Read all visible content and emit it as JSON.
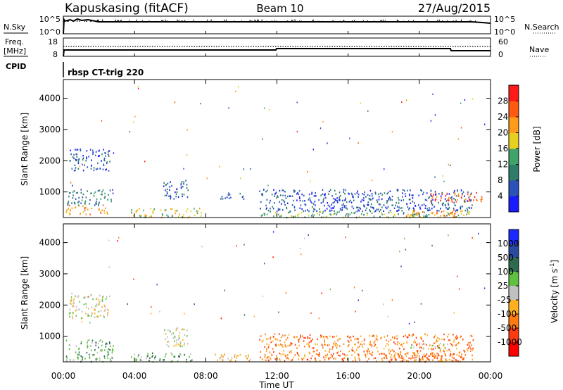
{
  "header": {
    "station": "Kapuskasing (fitACF)",
    "beam": "Beam 10",
    "date": "27/Aug/2015"
  },
  "top_panels": {
    "nsky_label": "N.Sky",
    "nsearch_label": "N.Search",
    "nsky_ticks": [
      "10^5",
      "10^0"
    ],
    "nsearch_ticks": [
      "10^5",
      "10^0"
    ],
    "freq_label_line1": "Freq.",
    "freq_label_line2": "[MHz]",
    "freq_ticks": [
      "18",
      "8"
    ],
    "nave_label": "Nave",
    "nave_ticks": [
      "60",
      "0"
    ],
    "cpid_label": "CPID",
    "cpid_text": "rbsp CT-trig 220"
  },
  "chart_data": [
    {
      "type": "heatmap",
      "panel": "power",
      "ylabel": "Slant Range [km]",
      "colorbar_label": "Power [dB]",
      "xlim": [
        "00:00",
        "24:00"
      ],
      "ylim": [
        180,
        4600
      ],
      "yticks": [
        1000,
        2000,
        3000,
        4000
      ],
      "colorbar_ticks": [
        "4",
        "8",
        "12",
        "16",
        "20",
        "24",
        "28"
      ],
      "colors": [
        "#1a1aff",
        "#2a52b8",
        "#2e7d6a",
        "#3fa36a",
        "#e8d020",
        "#ff9a1a",
        "#ff5a10",
        "#ff1a1a"
      ],
      "scatter_regions": [
        {
          "t0": 0.1,
          "t1": 2.6,
          "r0": 300,
          "r1": 600,
          "level": 5
        },
        {
          "t0": 0.2,
          "t1": 2.8,
          "r0": 600,
          "r1": 1100,
          "level": 2
        },
        {
          "t0": 0.3,
          "t1": 2.6,
          "r0": 1700,
          "r1": 2400,
          "level": 1
        },
        {
          "t0": 5.6,
          "t1": 7.0,
          "r0": 800,
          "r1": 1400,
          "level": 1
        },
        {
          "t0": 3.8,
          "t1": 7.8,
          "r0": 200,
          "r1": 500,
          "level": 4
        },
        {
          "t0": 8.8,
          "t1": 10.2,
          "r0": 800,
          "r1": 1000,
          "level": 1
        },
        {
          "t0": 11.0,
          "t1": 23.0,
          "r0": 400,
          "r1": 1100,
          "level": 1
        },
        {
          "t0": 11.0,
          "t1": 23.0,
          "r0": 200,
          "r1": 400,
          "level": 3
        },
        {
          "t0": 19.0,
          "t1": 22.5,
          "r0": 200,
          "r1": 450,
          "level": 5
        },
        {
          "t0": 20.5,
          "t1": 23.5,
          "r0": 700,
          "r1": 1000,
          "level": 6
        }
      ]
    },
    {
      "type": "heatmap",
      "panel": "velocity",
      "ylabel": "Slant Range [km]",
      "colorbar_label": "Velocity [m s^-1]",
      "xlabel": "Time UT",
      "xlim": [
        "00:00",
        "24:00"
      ],
      "xticks": [
        "00:00",
        "04:00",
        "08:00",
        "12:00",
        "16:00",
        "20:00",
        "00:00"
      ],
      "ylim": [
        180,
        4600
      ],
      "yticks": [
        1000,
        2000,
        3000,
        4000
      ],
      "colorbar_ticks": [
        "1000",
        "500",
        "100",
        "25",
        "-25",
        "-100",
        "-500",
        "-1000"
      ],
      "colors": [
        "#1a2aff",
        "#2a4aa0",
        "#2e6a50",
        "#60c040",
        "#c0c0c0",
        "#ffb020",
        "#ff7a10",
        "#ff3a10",
        "#ff0000"
      ],
      "scatter_regions": [
        {
          "t0": 0.1,
          "t1": 2.8,
          "r0": 200,
          "r1": 900,
          "level": 3
        },
        {
          "t0": 0.3,
          "t1": 2.6,
          "r0": 1600,
          "r1": 2400,
          "level": 4
        },
        {
          "t0": 3.8,
          "t1": 7.2,
          "r0": 200,
          "r1": 500,
          "level": 3
        },
        {
          "t0": 5.6,
          "t1": 7.0,
          "r0": 700,
          "r1": 1300,
          "level": 4
        },
        {
          "t0": 8.5,
          "t1": 10.5,
          "r0": 200,
          "r1": 500,
          "level": 5
        },
        {
          "t0": 11.0,
          "t1": 23.0,
          "r0": 200,
          "r1": 1100,
          "level": 6
        },
        {
          "t0": 18.0,
          "t1": 22.5,
          "r0": 200,
          "r1": 500,
          "level": 6
        },
        {
          "t0": 19.5,
          "t1": 22.0,
          "r0": 600,
          "r1": 800,
          "level": 4
        }
      ]
    }
  ]
}
